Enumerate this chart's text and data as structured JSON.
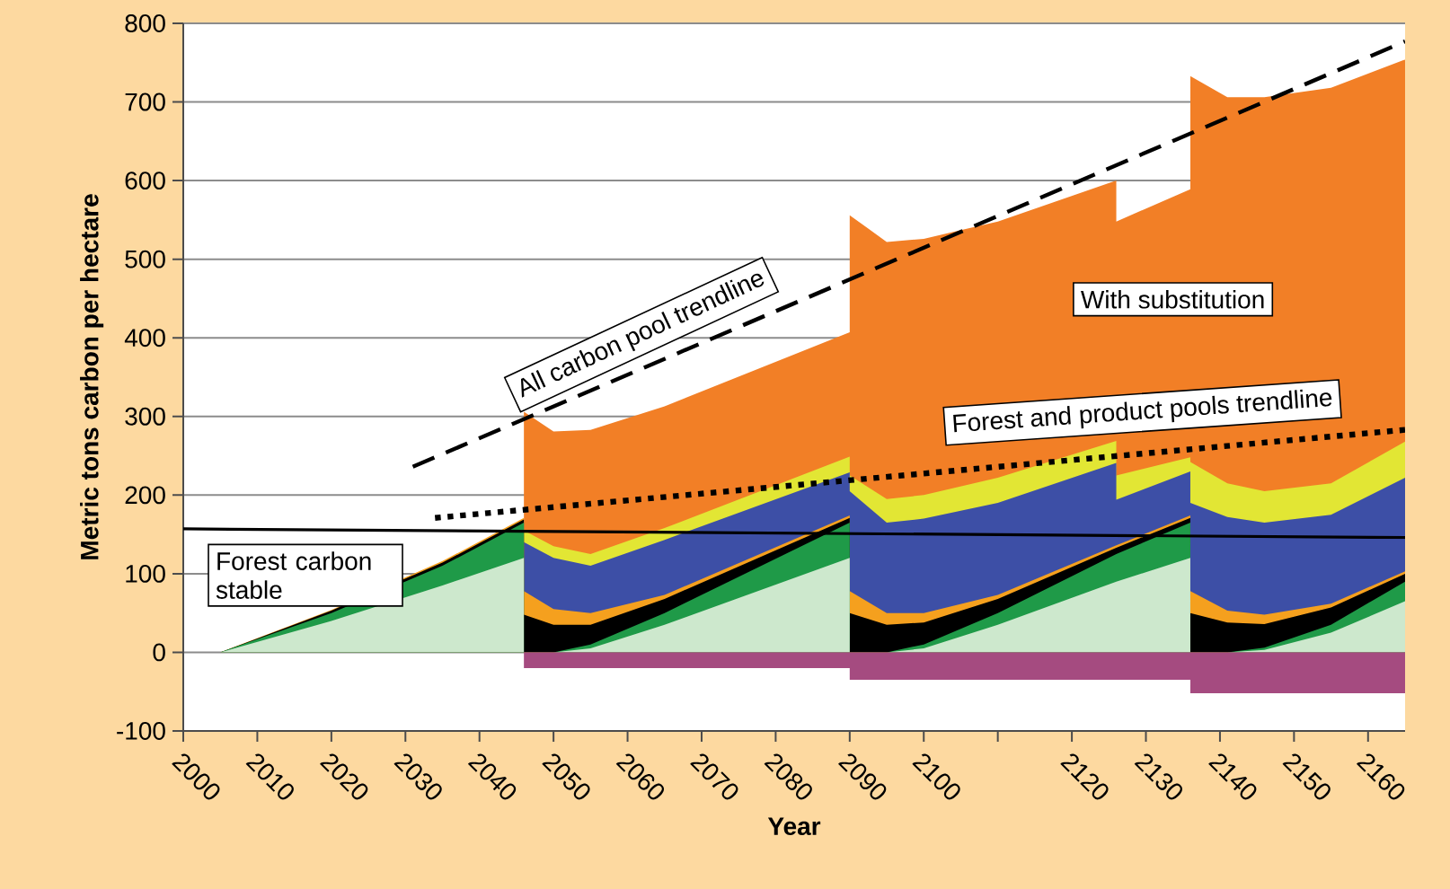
{
  "chart_data": {
    "type": "area",
    "xlabel": "Year",
    "ylabel": "Metric tons carbon per hectare",
    "x": [
      2000,
      2005,
      2020,
      2035,
      2046,
      2046,
      2050,
      2055,
      2065,
      2090,
      2090,
      2095,
      2100,
      2110,
      2126,
      2126,
      2136,
      2136,
      2141,
      2146,
      2155,
      2165
    ],
    "series": [
      {
        "color": "#f27f26",
        "values": [
          null,
          null,
          null,
          null,
          null,
          306,
          281,
          283,
          313,
          407,
          556,
          522,
          526,
          548,
          600,
          548,
          589,
          733,
          706,
          706,
          718,
          754
        ]
      },
      {
        "color": "#e2e634",
        "values": [
          null,
          null,
          null,
          null,
          null,
          155,
          135,
          125,
          158,
          249,
          225,
          195,
          200,
          222,
          269,
          225,
          248,
          242,
          215,
          205,
          215,
          268
        ]
      },
      {
        "color": "#3d4fa6",
        "values": [
          null,
          null,
          null,
          null,
          null,
          140,
          120,
          110,
          143,
          229,
          205,
          165,
          170,
          190,
          241,
          194,
          230,
          190,
          172,
          165,
          175,
          222
        ]
      },
      {
        "color": "#f5a01e",
        "values": [
          0,
          0,
          54,
          116,
          171,
          78,
          55,
          50,
          73,
          174,
          78,
          50,
          50,
          73,
          136,
          136,
          174,
          78,
          53,
          48,
          62,
          103
        ]
      },
      {
        "color": "#000000",
        "values": [
          0,
          0,
          53,
          114,
          169,
          48,
          35,
          35,
          68,
          171,
          50,
          35,
          38,
          68,
          133,
          133,
          171,
          50,
          38,
          36,
          57,
          100
        ]
      },
      {
        "color": "#1f9a48",
        "values": [
          0,
          0,
          50,
          110,
          165,
          0,
          0,
          10,
          50,
          165,
          0,
          0,
          10,
          50,
          125,
          125,
          165,
          0,
          0,
          6,
          35,
          90
        ]
      },
      {
        "color": "#cde8cd",
        "values": [
          0,
          0,
          40,
          85,
          120,
          0,
          0,
          5,
          35,
          120,
          0,
          0,
          5,
          35,
          90,
          90,
          120,
          0,
          0,
          3,
          25,
          65
        ]
      },
      {
        "color": "#a54b80",
        "values": [
          0,
          0,
          0,
          0,
          0,
          -20,
          -20,
          -20,
          -20,
          -20,
          -35,
          -35,
          -35,
          -35,
          -35,
          -35,
          -35,
          -52,
          -52,
          -52,
          -52,
          -52
        ]
      },
      {
        "type": "line",
        "color": "#000000",
        "line_style": "dashed",
        "x": [
          2031,
          2165
        ],
        "values": [
          236,
          777
        ]
      },
      {
        "type": "line",
        "color": "#000000",
        "line_style": "dotted",
        "x": [
          2034,
          2165
        ],
        "values": [
          171,
          283
        ]
      },
      {
        "type": "line",
        "color": "#000000",
        "line_style": "solid",
        "x": [
          2000,
          2165
        ],
        "values": [
          157,
          146
        ]
      }
    ],
    "xlim": [
      2000,
      2165
    ],
    "ylim": [
      -100,
      800
    ],
    "xticks": [
      2000,
      2010,
      2020,
      2030,
      2040,
      2050,
      2060,
      2070,
      2080,
      2090,
      2100,
      {
        "value": 2110,
        "label": null
      },
      2120,
      2130,
      2140,
      2150,
      2160
    ],
    "yticks": [
      -100,
      0,
      100,
      200,
      300,
      400,
      500,
      600,
      700,
      800
    ],
    "grid": "y",
    "annotations": [
      "All carbon pool trendline",
      "Forest and product pools trendline",
      "With substitution",
      "Forest carbon stable"
    ]
  }
}
